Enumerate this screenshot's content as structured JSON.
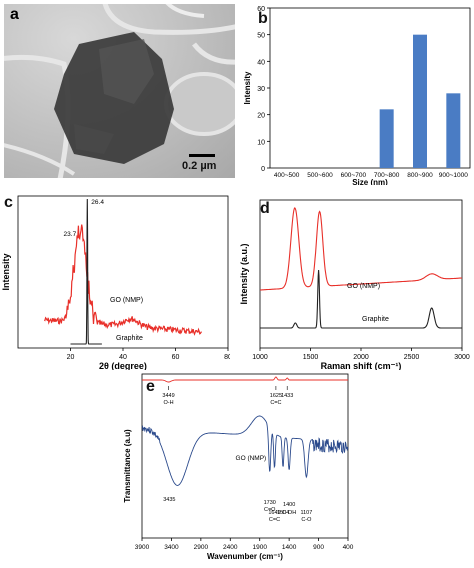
{
  "panel_labels": {
    "a": "a",
    "b": "b",
    "c": "c",
    "d": "d",
    "e": "e"
  },
  "tem": {
    "scale_bar": "0.2 µm"
  },
  "chart_data": [
    {
      "panel": "b",
      "type": "bar",
      "categories": [
        "400~500",
        "500~600",
        "600~700",
        "700~800",
        "800~900",
        "900~1000"
      ],
      "values": [
        0,
        0,
        0,
        22,
        50,
        28
      ],
      "xlabel": "Size (nm)",
      "ylabel": "Intensity",
      "ylim": [
        0,
        60
      ],
      "yticks": [
        "0",
        "10",
        "20",
        "30",
        "40",
        "50",
        "60"
      ],
      "color": "#4a7cc4"
    },
    {
      "panel": "c",
      "type": "line",
      "xlabel": "2θ (degree)",
      "ylabel": "Intensity",
      "xlim": [
        0,
        80
      ],
      "xticks": [
        "20",
        "40",
        "60",
        "80"
      ],
      "series": [
        {
          "name": "GO (NMP)",
          "color": "#e8302a",
          "peak": 23.7
        },
        {
          "name": "Graphite",
          "color": "#222222",
          "peak": 26.4
        }
      ],
      "annotations": [
        "23.7",
        "26.4"
      ]
    },
    {
      "panel": "d",
      "type": "line",
      "xlabel": "Raman shift (cm⁻¹)",
      "ylabel": "Intensity (a.u.)",
      "xlim": [
        1000,
        3000
      ],
      "xticks": [
        "1000",
        "1500",
        "2000",
        "2500",
        "3000"
      ],
      "series": [
        {
          "name": "GO (NMP)",
          "color": "#e8302a"
        },
        {
          "name": "Graphite",
          "color": "#222222"
        }
      ]
    },
    {
      "panel": "e",
      "type": "line",
      "xlabel": "Wavenumber (cm⁻¹)",
      "ylabel": "Transmittance (a.u)",
      "xlim": [
        3900,
        400
      ],
      "xticks": [
        "3900",
        "3400",
        "2900",
        "2400",
        "1900",
        "1400",
        "900",
        "400"
      ],
      "series": [
        {
          "name": "",
          "color": "#e8302a"
        },
        {
          "name": "GO (NMP)",
          "color": "#2b4a8c"
        }
      ],
      "annotations_top": [
        {
          "x": 3449,
          "label": "3449",
          "sub": "O-H"
        },
        {
          "x": 1625,
          "label": "1625",
          "sub": "C=C"
        },
        {
          "x": 1433,
          "label": "1433",
          "sub": ""
        }
      ],
      "annotations_bottom": [
        {
          "x": 3435,
          "label": "3435",
          "sub": ""
        },
        {
          "x": 1730,
          "label": "1730",
          "sub": "C=O"
        },
        {
          "x": 1649,
          "label": "1649",
          "sub": "C=C"
        },
        {
          "x": 1504,
          "label": "1504",
          "sub": ""
        },
        {
          "x": 1400,
          "label": "1400",
          "sub": "C-OH"
        },
        {
          "x": 1107,
          "label": "1107",
          "sub": "C-O"
        }
      ]
    }
  ]
}
